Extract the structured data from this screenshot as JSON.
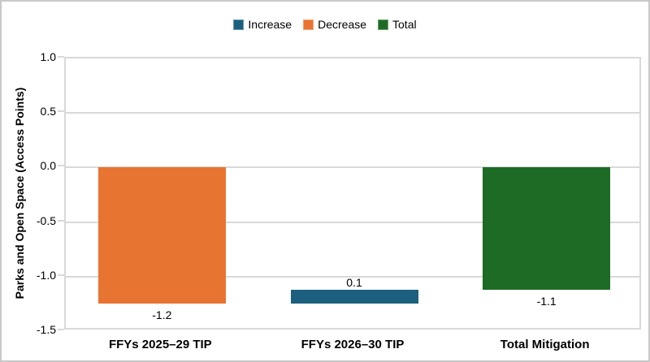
{
  "colors": {
    "increase": "#1D5F7E",
    "decrease": "#E87431",
    "total": "#1E6B26",
    "gridline": "#D9D9D9",
    "plot_border": "#D9D9D9",
    "outer_border": "#C9C9C9",
    "text": "#000000",
    "background": "#FFFFFF"
  },
  "chart_data": {
    "type": "bar",
    "subtype": "waterfall",
    "title": "",
    "ylabel": "Parks and Open Space (Access Points)",
    "xlabel": "",
    "ylim": [
      -1.5,
      1.0
    ],
    "ytick_interval": 0.5,
    "yticks": [
      {
        "value": 1.0,
        "label": "1.0"
      },
      {
        "value": 0.5,
        "label": "0.5"
      },
      {
        "value": 0.0,
        "label": "0.0"
      },
      {
        "value": -0.5,
        "label": "-0.5"
      },
      {
        "value": -1.0,
        "label": "-1.0"
      },
      {
        "value": -1.5,
        "label": "-1.5"
      }
    ],
    "grid": true,
    "legend_position": "top-center",
    "legend": [
      {
        "label": "Increase",
        "color_key": "increase"
      },
      {
        "label": "Decrease",
        "color_key": "decrease"
      },
      {
        "label": "Total",
        "color_key": "total"
      }
    ],
    "categories": [
      "FFYs 2025–29 TIP",
      "FFYs 2026–30 TIP",
      "Total Mitigation"
    ],
    "bars": [
      {
        "category": "FFYs 2025–29 TIP",
        "series": "Decrease",
        "value": -1.2,
        "value_label": "-1.2",
        "draw_from": 0,
        "draw_to": -1.25,
        "color_key": "decrease",
        "label_side": "below"
      },
      {
        "category": "FFYs 2026–30 TIP",
        "series": "Increase",
        "value": 0.1,
        "value_label": "0.1",
        "draw_from": -1.25,
        "draw_to": -1.12,
        "color_key": "increase",
        "label_side": "above"
      },
      {
        "category": "Total Mitigation",
        "series": "Total",
        "value": -1.1,
        "value_label": "-1.1",
        "draw_from": 0,
        "draw_to": -1.12,
        "color_key": "total",
        "label_side": "below"
      }
    ]
  }
}
